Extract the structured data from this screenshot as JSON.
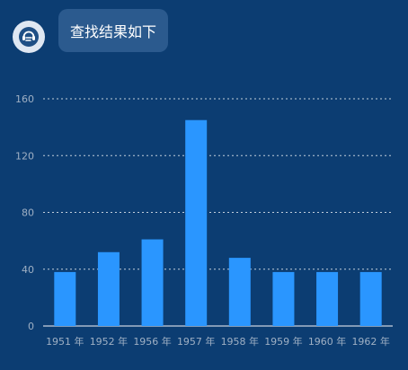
{
  "message": {
    "text": "查找结果如下"
  },
  "icons": {
    "avatar": "assistant-headset-icon"
  },
  "colors": {
    "background": "#0c3d72",
    "bubble": "#2b5a8e",
    "bar": "#2a96ff",
    "grid": "#ffffff",
    "tick_label": "#9fb0c4"
  },
  "chart_data": {
    "type": "bar",
    "categories": [
      "1951 年",
      "1952 年",
      "1956 年",
      "1957 年",
      "1958 年",
      "1959 年",
      "1960 年",
      "1962 年"
    ],
    "values": [
      38,
      52,
      61,
      145,
      48,
      38,
      38,
      38
    ],
    "yticks": [
      0,
      40,
      80,
      120,
      160
    ],
    "ylim": [
      0,
      160
    ],
    "grid": true,
    "legend": "none"
  }
}
